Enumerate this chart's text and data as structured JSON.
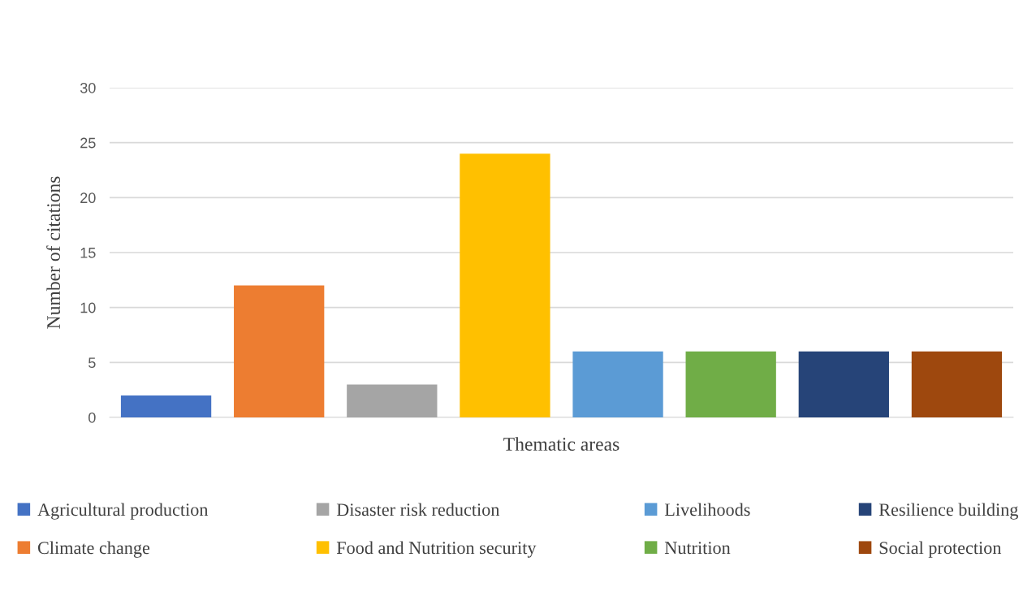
{
  "chart_data": {
    "type": "bar",
    "xlabel": "Thematic areas",
    "ylabel": "Number of citations",
    "categories": [
      null,
      null,
      null,
      null,
      null,
      null,
      null,
      null
    ],
    "series": [
      {
        "name": "Agricultural production",
        "color": "#4472c4",
        "values": [
          2,
          null,
          null,
          null,
          null,
          null,
          null,
          null
        ]
      },
      {
        "name": "Climate change",
        "color": "#ed7d31",
        "values": [
          null,
          12,
          null,
          null,
          null,
          null,
          null,
          null
        ]
      },
      {
        "name": "Disaster risk reduction",
        "color": "#a5a5a5",
        "values": [
          null,
          null,
          3,
          null,
          null,
          null,
          null,
          null
        ]
      },
      {
        "name": "Food and Nutrition security",
        "color": "#ffc000",
        "values": [
          null,
          null,
          null,
          24,
          null,
          null,
          null,
          null
        ]
      },
      {
        "name": "Livelihoods",
        "color": "#5b9bd5",
        "values": [
          null,
          null,
          null,
          null,
          6,
          null,
          null,
          null
        ]
      },
      {
        "name": "Nutrition",
        "color": "#70ad47",
        "values": [
          null,
          null,
          null,
          null,
          null,
          6,
          null,
          null
        ]
      },
      {
        "name": "Resilience building",
        "color": "#264478",
        "values": [
          null,
          null,
          null,
          null,
          null,
          null,
          6,
          null
        ]
      },
      {
        "name": "Social protection",
        "color": "#9e480e",
        "values": [
          null,
          null,
          null,
          null,
          null,
          null,
          null,
          6
        ]
      }
    ],
    "ylim": [
      0,
      30
    ],
    "yticks": [
      0,
      5,
      10,
      15,
      20,
      25,
      30
    ],
    "grid": "y",
    "legend": "bottom"
  }
}
